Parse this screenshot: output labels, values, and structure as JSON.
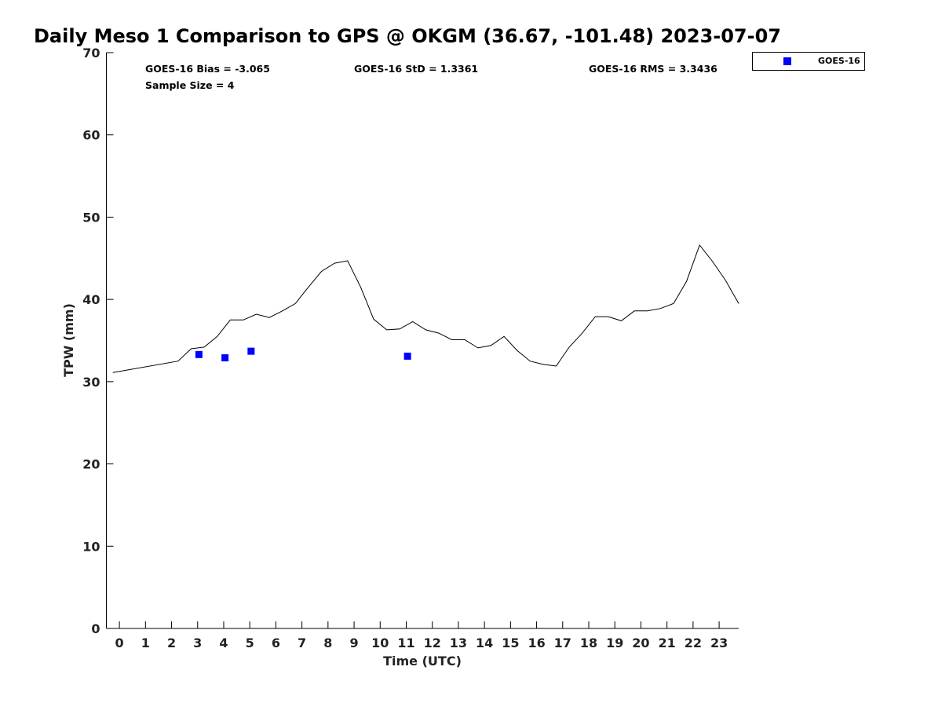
{
  "chart_data": {
    "type": "line",
    "title": "Daily Meso 1 Comparison to GPS @ OKGM (36.67, -101.48) 2023-07-07",
    "xlabel": "Time (UTC)",
    "ylabel": "TPW (mm)",
    "xlim": [
      -0.5,
      23.75
    ],
    "ylim": [
      0,
      70
    ],
    "x_ticks": [
      0,
      1,
      2,
      3,
      4,
      5,
      6,
      7,
      8,
      9,
      10,
      11,
      12,
      13,
      14,
      15,
      16,
      17,
      18,
      19,
      20,
      21,
      22,
      23
    ],
    "x_tick_labels": [
      "0",
      "1",
      "2",
      "3",
      "4",
      "5",
      "6",
      "7",
      "8",
      "9",
      "10",
      "11",
      "12",
      "13",
      "14",
      "15",
      "16",
      "17",
      "18",
      "19",
      "20",
      "21",
      "22",
      "23"
    ],
    "y_ticks": [
      0,
      10,
      20,
      30,
      40,
      50,
      60,
      70
    ],
    "y_tick_labels": [
      "0",
      "10",
      "20",
      "30",
      "40",
      "50",
      "60",
      "70"
    ],
    "grid": false,
    "legend_position": "outside-top-right",
    "stats": {
      "bias": "GOES-16 Bias = -3.065",
      "std": "GOES-16 StD = 1.3361",
      "rms": "GOES-16 RMS = 3.3436",
      "sample_size": "Sample Size = 4"
    },
    "series": [
      {
        "kind": "line",
        "color": "#000000",
        "x": [
          -0.25,
          2.25,
          2.75,
          3.25,
          3.75,
          4.25,
          4.75,
          5.25,
          5.75,
          6.25,
          6.75,
          7.25,
          7.75,
          8.25,
          8.75,
          9.25,
          9.75,
          10.25,
          10.75,
          11.25,
          11.75,
          12.25,
          12.75,
          13.25,
          13.75,
          14.25,
          14.75,
          15.25,
          15.75,
          16.25,
          16.75,
          17.25,
          17.75,
          18.25,
          18.75,
          19.25,
          19.75,
          20.25,
          20.75,
          21.25,
          21.75,
          22.25,
          22.75,
          23.25,
          23.75
        ],
        "y": [
          31.1,
          32.5,
          34.0,
          34.2,
          35.5,
          37.5,
          37.5,
          38.2,
          37.8,
          38.6,
          39.5,
          41.5,
          43.4,
          44.4,
          44.7,
          41.5,
          37.6,
          36.3,
          36.4,
          37.3,
          36.3,
          35.9,
          35.1,
          35.1,
          34.1,
          34.4,
          35.5,
          33.8,
          32.5,
          32.1,
          31.9,
          34.2,
          35.9,
          37.9,
          37.9,
          37.4,
          38.6,
          38.6,
          38.9,
          39.5,
          42.2,
          46.6,
          44.6,
          42.3,
          39.5
        ]
      },
      {
        "kind": "scatter",
        "name": "GOES-16",
        "color": "#0000ff",
        "x": [
          3.05,
          4.05,
          5.05,
          11.05
        ],
        "y": [
          33.3,
          32.9,
          33.7,
          33.1
        ]
      }
    ]
  }
}
